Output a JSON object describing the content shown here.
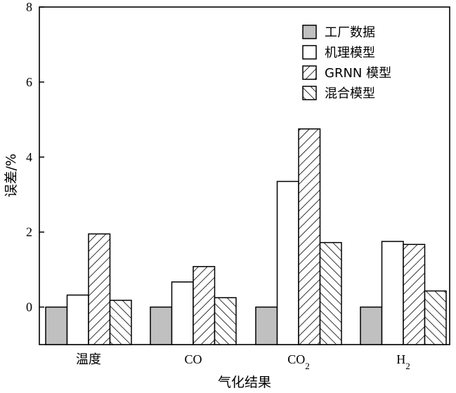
{
  "chart_data": {
    "type": "bar",
    "categories": [
      "温度",
      "CO",
      "CO",
      "H"
    ],
    "category_subscripts": [
      "",
      "",
      "2",
      "2"
    ],
    "series": [
      {
        "name": "工厂数据",
        "values": [
          0,
          0,
          0,
          0
        ],
        "pattern": "solid-gray"
      },
      {
        "name": "机理模型",
        "values": [
          0.32,
          0.67,
          3.35,
          1.75
        ],
        "pattern": "white"
      },
      {
        "name": "GRNN 模型",
        "values": [
          1.95,
          1.08,
          4.75,
          1.67
        ],
        "pattern": "hatch-forward"
      },
      {
        "name": "混合模型",
        "values": [
          0.18,
          0.25,
          1.72,
          0.43
        ],
        "pattern": "hatch-back"
      }
    ],
    "xlabel": "气化结果",
    "ylabel": "误差/%",
    "ylim": [
      -1,
      8
    ],
    "yticks": [
      0,
      2,
      4,
      6,
      8
    ],
    "legend_position": "top-right",
    "colors": {
      "gray_fill": "#c0c0c0",
      "stroke": "#000000",
      "background": "#ffffff"
    }
  }
}
